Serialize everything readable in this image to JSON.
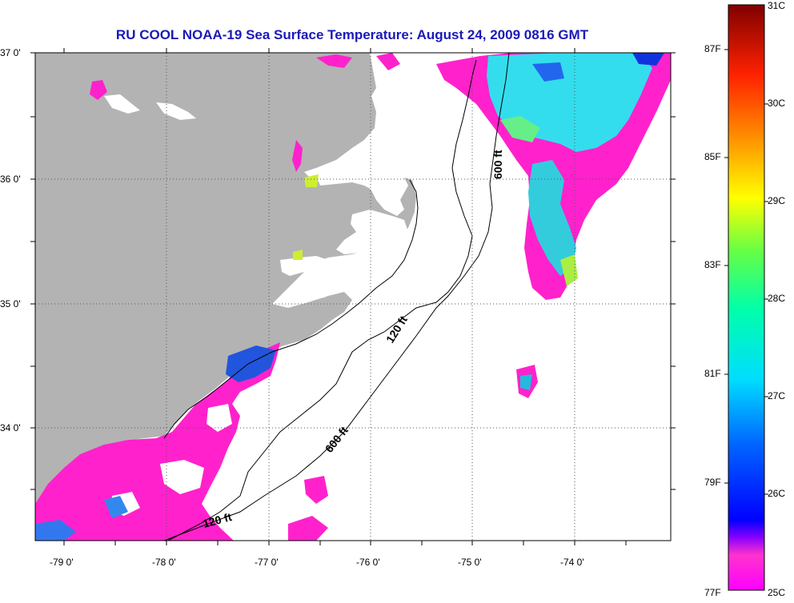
{
  "title": "RU COOL  NOAA-19  Sea Surface Temperature:  August 24, 2009 0816 GMT",
  "lat_labels": [
    "37 0'",
    "36 0'",
    "35 0'",
    "34 0'"
  ],
  "lon_labels": [
    "-79 0'",
    "-78 0'",
    "-77 0'",
    "-76 0'",
    "-75 0'",
    "-74 0'"
  ],
  "contours": [
    "600 ft",
    "120 ft",
    "600 ft",
    "120 ft"
  ],
  "colorbar": {
    "celsius": [
      "31C",
      "30C",
      "29C",
      "28C",
      "27C",
      "26C",
      "25C"
    ],
    "fahrenheit": [
      "87F",
      "85F",
      "83F",
      "81F",
      "79F",
      "77F"
    ]
  },
  "colors": {
    "land": "#b3b3b3",
    "water_cloud": "#ffffff",
    "warm_patch": "#ff22cc",
    "title": "#1a1ab8"
  }
}
